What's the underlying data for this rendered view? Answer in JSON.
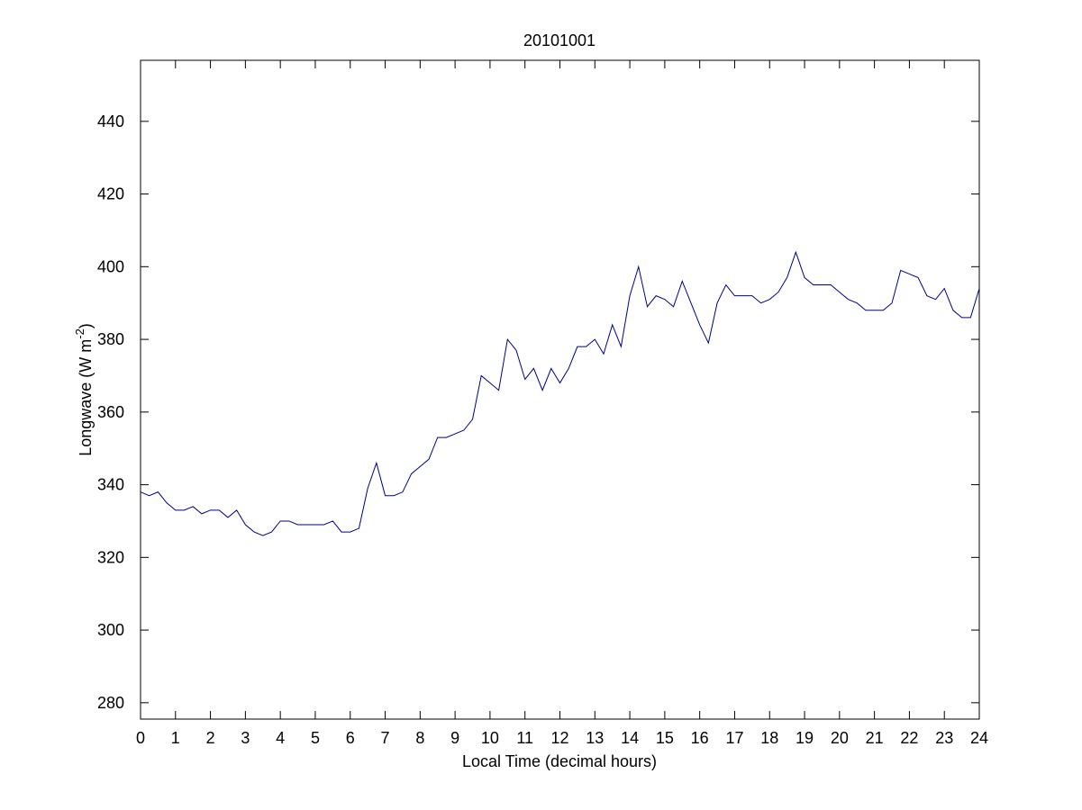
{
  "chart_data": {
    "type": "line",
    "title": "20101001",
    "xlabel": "Local Time (decimal hours)",
    "ylabel": [
      "Longwave (W m",
      "-2",
      ")"
    ],
    "x": [
      0,
      0.25,
      0.5,
      0.75,
      1,
      1.25,
      1.5,
      1.75,
      2,
      2.25,
      2.5,
      2.75,
      3,
      3.25,
      3.5,
      3.75,
      4,
      4.25,
      4.5,
      4.75,
      5,
      5.25,
      5.5,
      5.75,
      6,
      6.25,
      6.5,
      6.75,
      7,
      7.25,
      7.5,
      7.75,
      8,
      8.25,
      8.5,
      8.75,
      9,
      9.25,
      9.5,
      9.75,
      10,
      10.25,
      10.5,
      10.75,
      11,
      11.25,
      11.5,
      11.75,
      12,
      12.25,
      12.5,
      12.75,
      13,
      13.25,
      13.5,
      13.75,
      14,
      14.25,
      14.5,
      14.75,
      15,
      15.25,
      15.5,
      15.75,
      16,
      16.25,
      16.5,
      16.75,
      17,
      17.25,
      17.5,
      17.75,
      18,
      18.25,
      18.5,
      18.75,
      19,
      19.25,
      19.5,
      19.75,
      20,
      20.25,
      20.5,
      20.75,
      21,
      21.25,
      21.5,
      21.75,
      22,
      22.25,
      22.5,
      22.75,
      23,
      23.25,
      23.5,
      23.75,
      24
    ],
    "series": [
      {
        "color": "#00008b",
        "values": [
          338,
          337,
          338,
          335,
          333,
          333,
          334,
          332,
          333,
          333,
          331,
          333,
          329,
          327,
          326,
          327,
          330,
          330,
          329,
          329,
          329,
          329,
          330,
          327,
          327,
          328,
          339,
          346,
          337,
          337,
          338,
          343,
          345,
          347,
          353,
          353,
          354,
          355,
          358,
          370,
          368,
          366,
          380,
          377,
          369,
          372,
          366,
          372,
          368,
          372,
          378,
          378,
          380,
          376,
          384,
          378,
          392,
          400,
          389,
          392,
          391,
          389,
          396,
          390,
          384,
          379,
          390,
          395,
          392,
          392,
          392,
          390,
          391,
          393,
          397,
          404,
          397,
          395,
          395,
          395,
          393,
          391,
          390,
          388,
          388,
          388,
          390,
          399,
          398,
          397,
          392,
          391,
          394,
          388,
          386,
          386,
          394
        ]
      }
    ],
    "xlim": [
      0,
      24
    ],
    "xticks": [
      0,
      1,
      2,
      3,
      4,
      5,
      6,
      7,
      8,
      9,
      10,
      11,
      12,
      13,
      14,
      15,
      16,
      17,
      18,
      19,
      20,
      21,
      22,
      23,
      24
    ],
    "ylim": [
      275.5,
      456.8
    ],
    "yticks": [
      280,
      300,
      320,
      340,
      360,
      380,
      400,
      420,
      440
    ]
  }
}
